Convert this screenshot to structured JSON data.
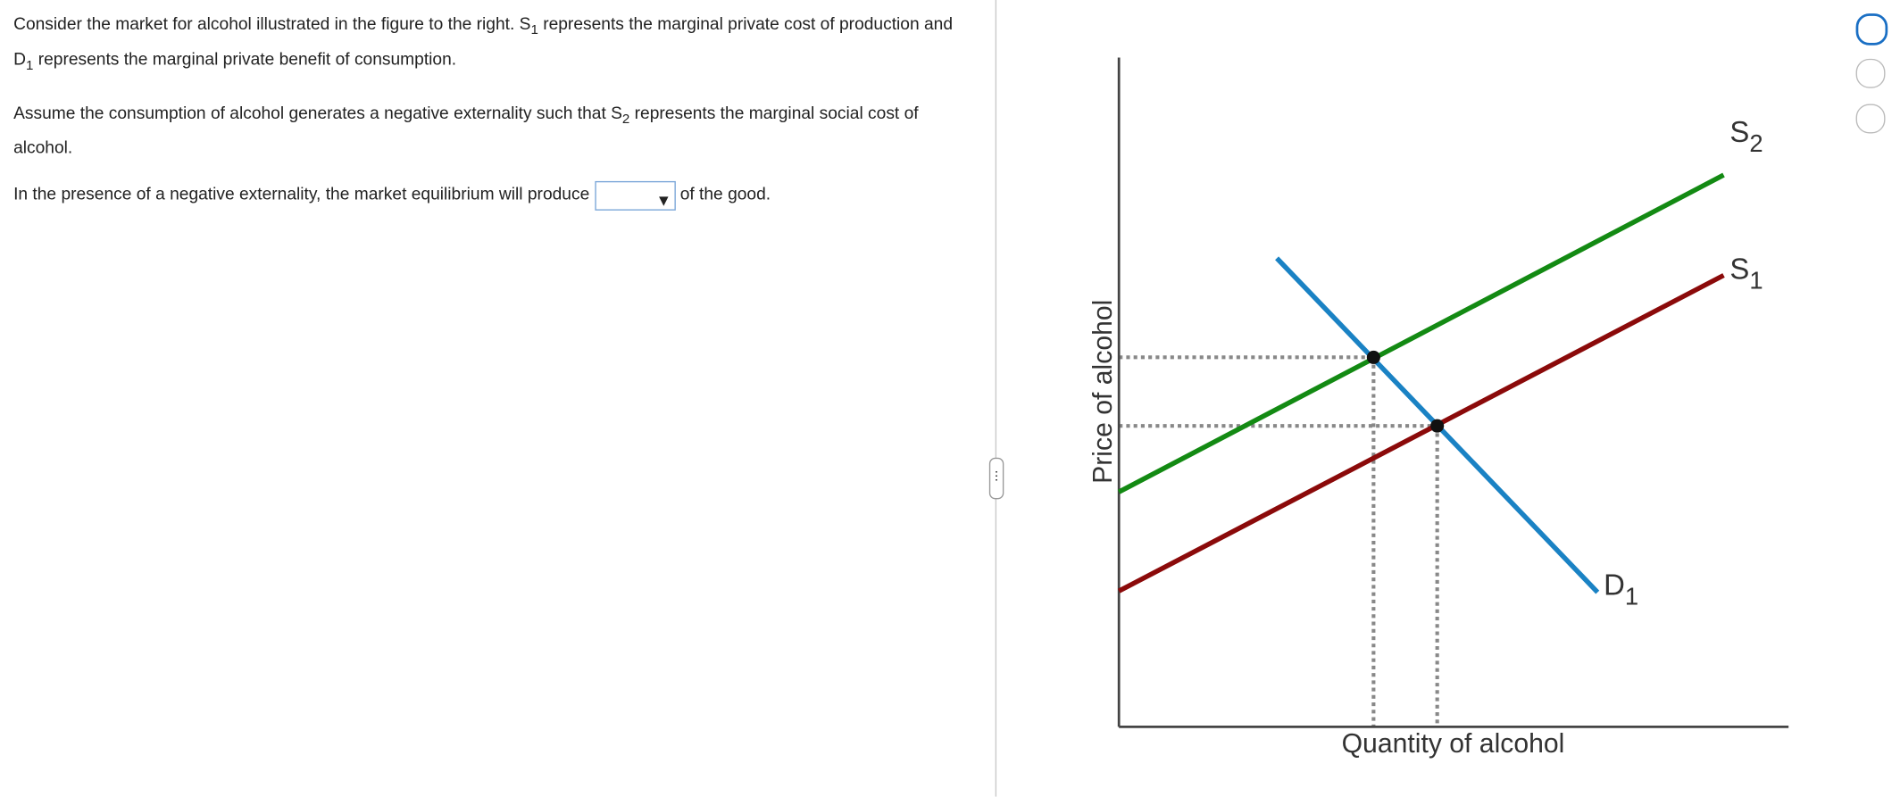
{
  "question": {
    "paragraphs": [
      [
        "Consider the market for alcohol illustrated in the figure to the right.  S",
        "1",
        " represents the marginal private cost of production and D",
        "1",
        " represents the marginal private benefit of consumption."
      ],
      [
        "Assume the consumption of alcohol generates a negative externality such that S",
        "2",
        " represents the marginal social cost of alcohol."
      ],
      [
        "In the presence of a negative externality, the market equilibrium will produce",
        "of the good."
      ]
    ]
  },
  "graph": {
    "y_axis_label": "Price of alcohol",
    "x_axis_label": "Quantity of alcohol",
    "curves": [
      {
        "name": "S",
        "subscript": "2"
      },
      {
        "name": "S",
        "subscript": "1"
      },
      {
        "name": "D",
        "subscript": "1"
      }
    ]
  }
}
